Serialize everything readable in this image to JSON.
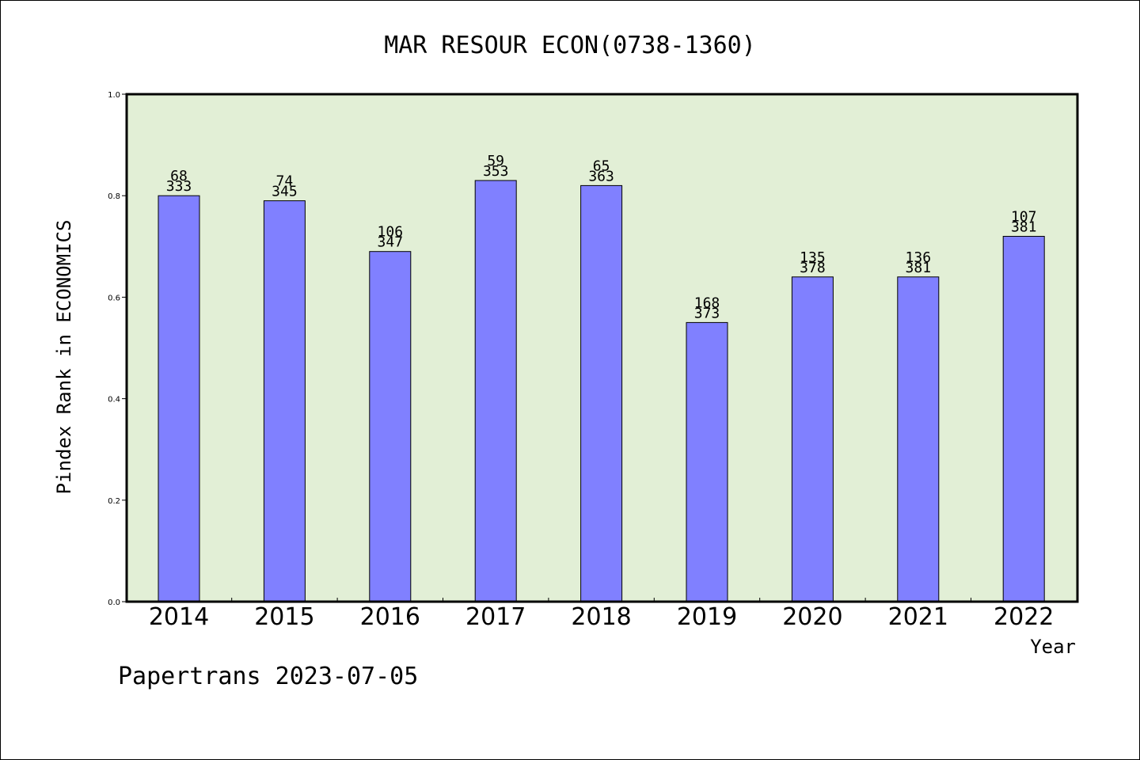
{
  "chart_data": {
    "type": "bar",
    "title": "MAR RESOUR ECON(0738-1360)",
    "xlabel": "Year",
    "ylabel": "Pindex Rank in ECONOMICS",
    "ylim": [
      0,
      1.0
    ],
    "yticks": [
      "0.0",
      "0.2",
      "0.4",
      "0.6",
      "0.8",
      "1.0"
    ],
    "categories": [
      "2014",
      "2015",
      "2016",
      "2017",
      "2018",
      "2019",
      "2020",
      "2021",
      "2022"
    ],
    "values": [
      0.8,
      0.79,
      0.69,
      0.83,
      0.82,
      0.55,
      0.64,
      0.64,
      0.72
    ],
    "label_top": [
      "68",
      "74",
      "106",
      "59",
      "65",
      "168",
      "135",
      "136",
      "107"
    ],
    "label_bottom": [
      "333",
      "345",
      "347",
      "353",
      "363",
      "373",
      "378",
      "381",
      "381"
    ],
    "grid": false,
    "colors": {
      "plot_background": "#e2efd6",
      "bar_fill": "#8080ff",
      "axis": "#000000"
    }
  },
  "footer": "Papertrans 2023-07-05"
}
